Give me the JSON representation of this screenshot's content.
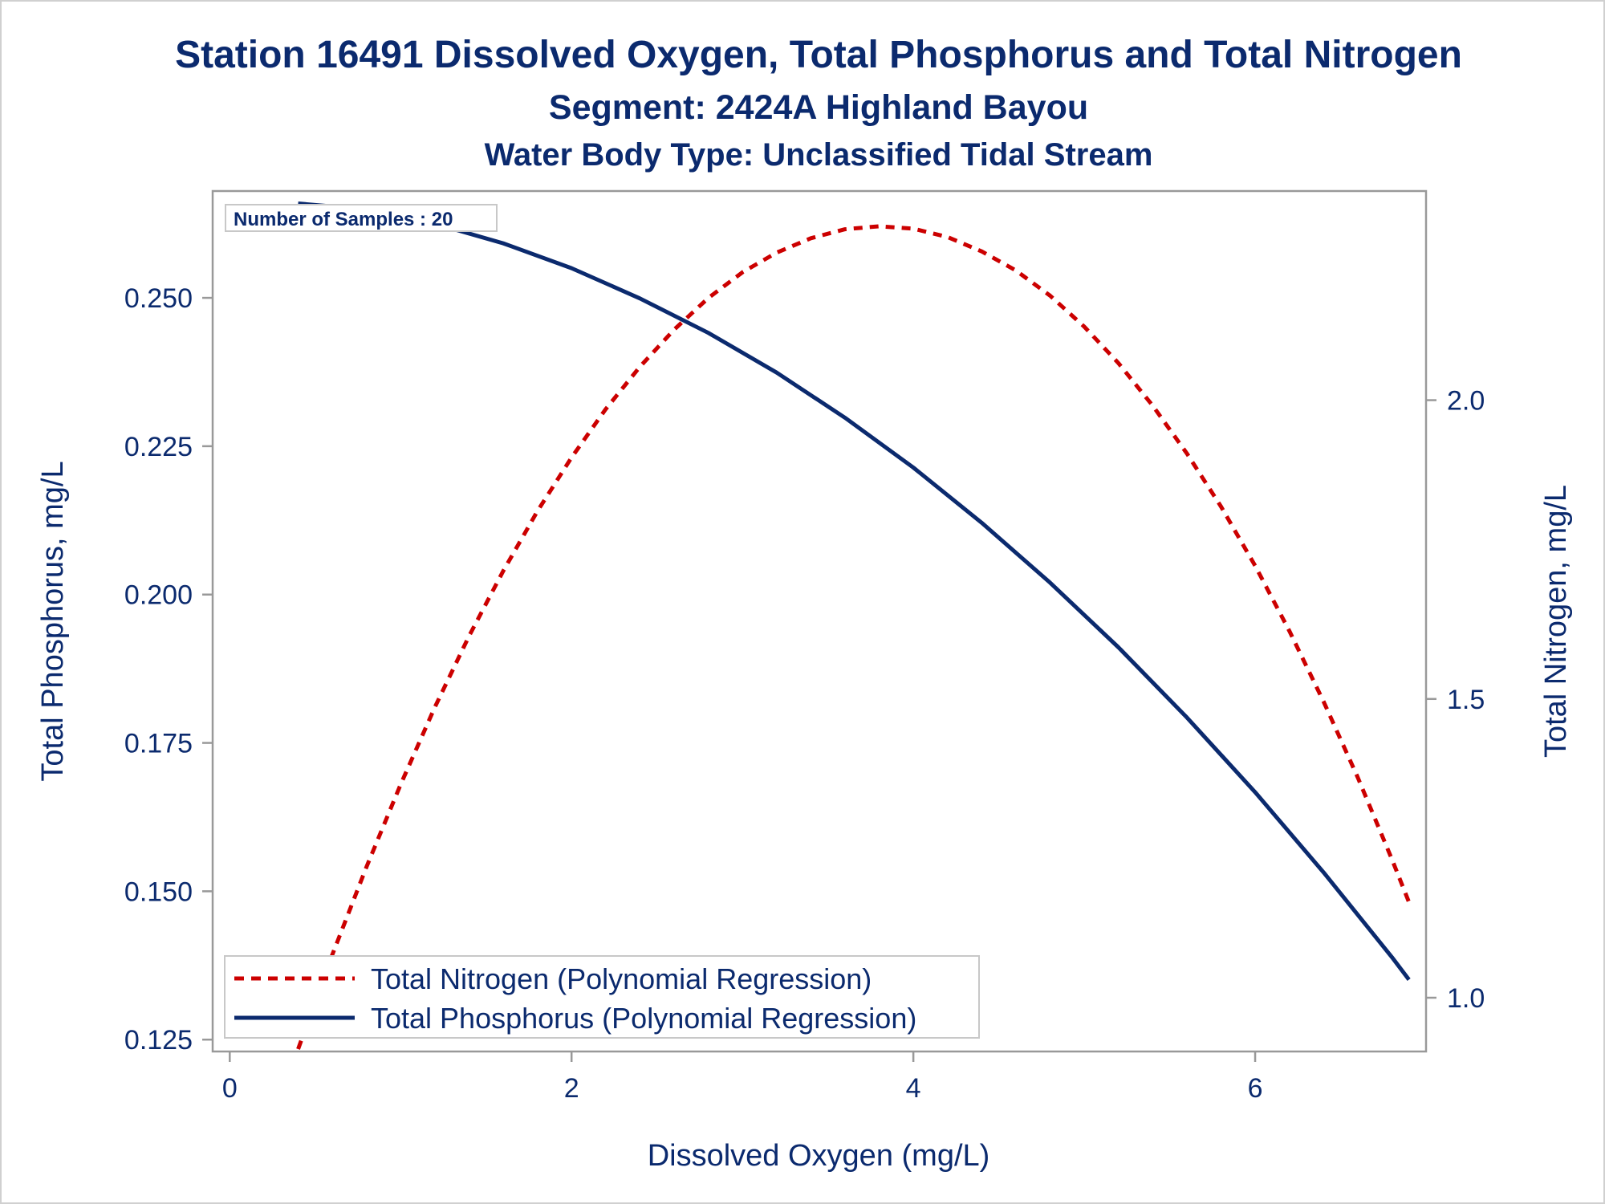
{
  "title": "Station 16491  Dissolved Oxygen, Total Phosphorus and Total Nitrogen",
  "subtitle": "Segment: 2424A  Highland Bayou",
  "subtitle2": "Water Body Type: Unclassified Tidal Stream",
  "inset_label": "Number of Samples : 20",
  "colors": {
    "text": "#0b2a6e",
    "phosphorus": "#0b2a6e",
    "nitrogen": "#cc0000",
    "frame": "#999999"
  },
  "chart_data": {
    "type": "line",
    "xlabel": "Dissolved Oxygen (mg/L)",
    "ylabel": "Total Phosphorus, mg/L",
    "y2label": "Total Nitrogen, mg/L",
    "xlim": [
      -0.1,
      7.0
    ],
    "ylim": [
      0.123,
      0.268
    ],
    "y2lim": [
      0.91,
      2.35
    ],
    "x_ticks": [
      0,
      2,
      4,
      6
    ],
    "y_ticks": [
      0.125,
      0.15,
      0.175,
      0.2,
      0.225,
      0.25
    ],
    "y_tick_labels": [
      "0.125",
      "0.150",
      "0.175",
      "0.200",
      "0.225",
      "0.250"
    ],
    "y2_ticks": [
      1.0,
      1.5,
      2.0
    ],
    "y2_tick_labels": [
      "1.0",
      "1.5",
      "2.0"
    ],
    "grid": false,
    "legend_position": "bottom-left",
    "series": [
      {
        "name": "Total Nitrogen (Polynomial Regression)",
        "axis": "right",
        "style": "dashed",
        "x": [
          0.4,
          0.6,
          0.8,
          1.0,
          1.2,
          1.4,
          1.6,
          1.8,
          2.0,
          2.2,
          2.4,
          2.6,
          2.8,
          3.0,
          3.2,
          3.4,
          3.6,
          3.8,
          4.0,
          4.2,
          4.4,
          4.6,
          4.8,
          5.0,
          5.2,
          5.4,
          5.6,
          5.8,
          6.0,
          6.2,
          6.4,
          6.6,
          6.8,
          6.9
        ],
        "y": [
          0.914,
          1.072,
          1.219,
          1.357,
          1.486,
          1.605,
          1.714,
          1.814,
          1.904,
          1.985,
          2.056,
          2.118,
          2.171,
          2.214,
          2.247,
          2.271,
          2.286,
          2.291,
          2.287,
          2.273,
          2.249,
          2.217,
          2.175,
          2.123,
          2.062,
          1.991,
          1.911,
          1.822,
          1.723,
          1.614,
          1.496,
          1.369,
          1.232,
          1.16
        ]
      },
      {
        "name": "Total Phosphorus (Polynomial Regression)",
        "axis": "left",
        "style": "solid",
        "x": [
          0.4,
          0.8,
          1.2,
          1.6,
          2.0,
          2.4,
          2.8,
          3.2,
          3.6,
          4.0,
          4.4,
          4.8,
          5.2,
          5.6,
          6.0,
          6.4,
          6.8,
          6.9
        ],
        "y": [
          0.2659,
          0.2649,
          0.2625,
          0.2592,
          0.255,
          0.2499,
          0.2441,
          0.2374,
          0.2298,
          0.2214,
          0.2121,
          0.202,
          0.1911,
          0.1793,
          0.1667,
          0.1532,
          0.1389,
          0.1351
        ]
      }
    ]
  }
}
